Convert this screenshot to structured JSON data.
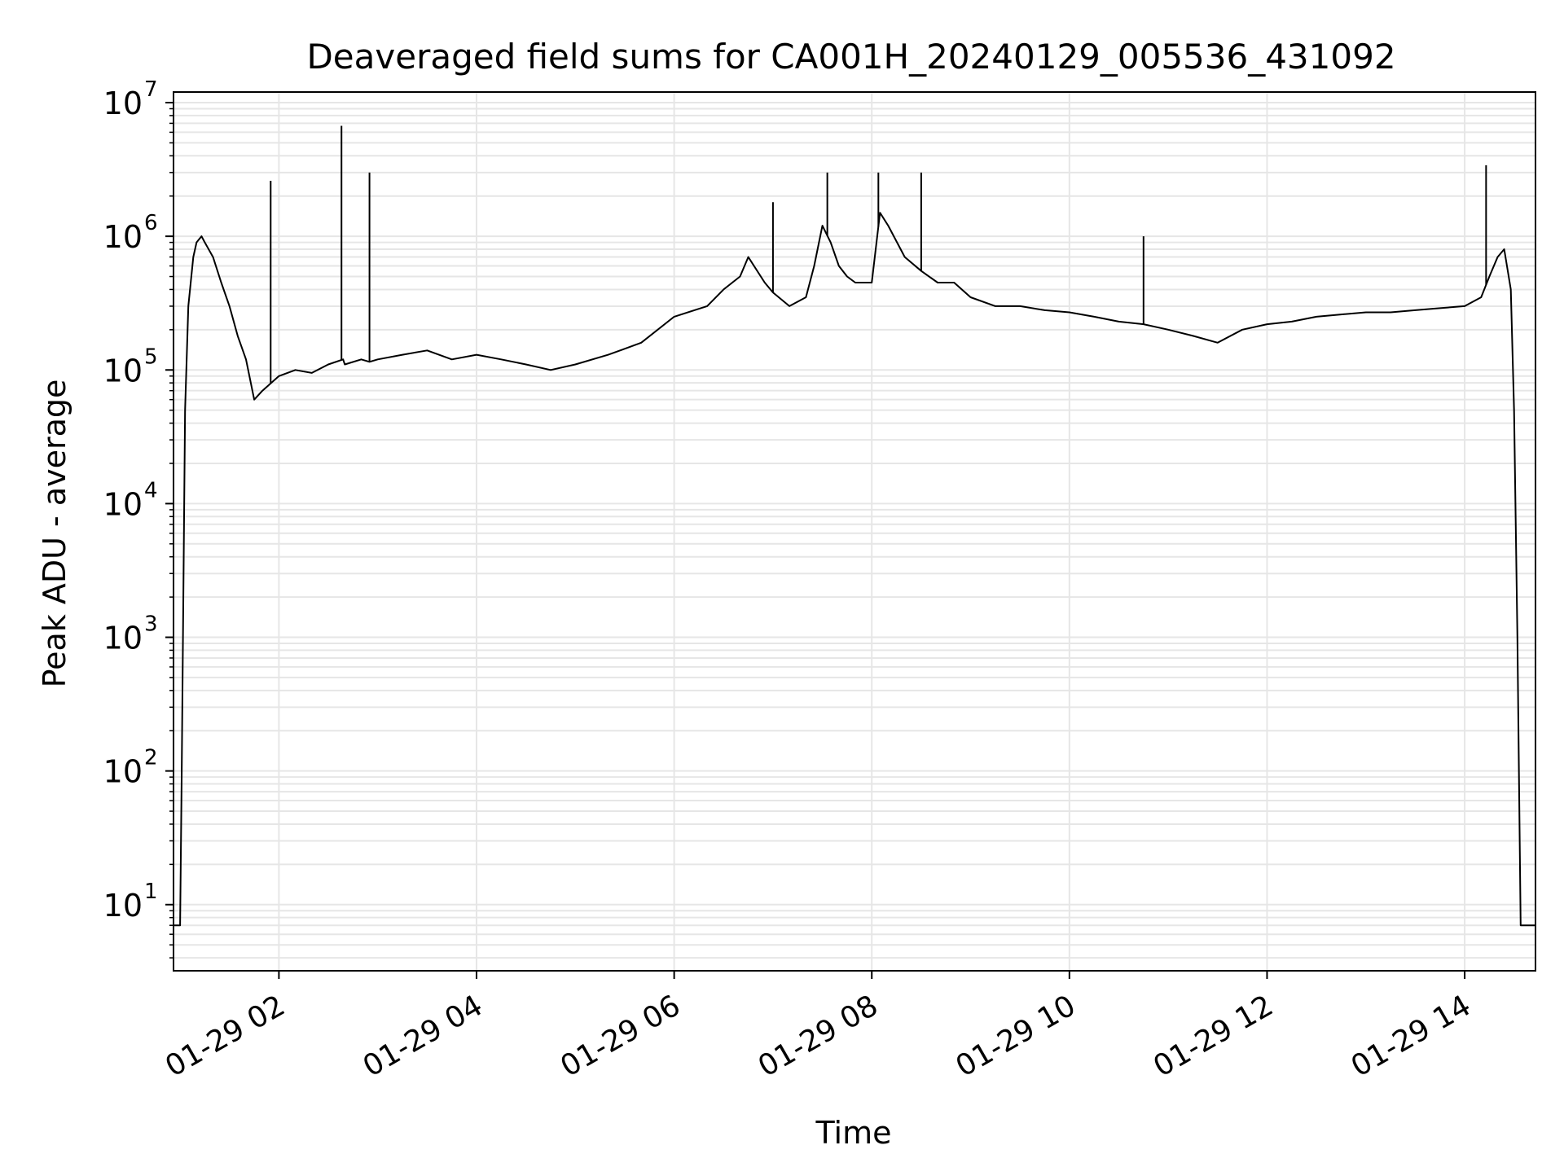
{
  "chart_data": {
    "type": "line",
    "title": "Deaveraged field sums for CA001H_20240129_005536_431092",
    "xlabel": "Time",
    "ylabel": "Peak ADU - average",
    "y_scale": "log",
    "grid": true,
    "xlim": [
      "2024-01-29 00:56",
      "2024-01-29 14:43"
    ],
    "ylim": [
      3.2,
      12000000
    ],
    "x_ticks": [
      {
        "label": "01-29 02",
        "value": "2024-01-29 02:00"
      },
      {
        "label": "01-29 04",
        "value": "2024-01-29 04:00"
      },
      {
        "label": "01-29 06",
        "value": "2024-01-29 06:00"
      },
      {
        "label": "01-29 08",
        "value": "2024-01-29 08:00"
      },
      {
        "label": "01-29 10",
        "value": "2024-01-29 10:00"
      },
      {
        "label": "01-29 12",
        "value": "2024-01-29 12:00"
      },
      {
        "label": "01-29 14",
        "value": "2024-01-29 14:00"
      }
    ],
    "y_ticks": [
      {
        "base": "10",
        "exp": "1",
        "value": 10
      },
      {
        "base": "10",
        "exp": "2",
        "value": 100
      },
      {
        "base": "10",
        "exp": "3",
        "value": 1000
      },
      {
        "base": "10",
        "exp": "4",
        "value": 10000
      },
      {
        "base": "10",
        "exp": "5",
        "value": 100000
      },
      {
        "base": "10",
        "exp": "6",
        "value": 1000000
      },
      {
        "base": "10",
        "exp": "7",
        "value": 10000000
      }
    ],
    "line_color": "#000000",
    "grid_color": "#e6e6e6",
    "series": [
      {
        "x": [
          "2024-01-29 00:56",
          "2024-01-29 01:00",
          "2024-01-29 01:01",
          "2024-01-29 01:03",
          "2024-01-29 01:05",
          "2024-01-29 01:08",
          "2024-01-29 01:10",
          "2024-01-29 01:13",
          "2024-01-29 01:15",
          "2024-01-29 01:20",
          "2024-01-29 01:25",
          "2024-01-29 01:30",
          "2024-01-29 01:35",
          "2024-01-29 01:40",
          "2024-01-29 01:45",
          "2024-01-29 01:50",
          "2024-01-29 02:00",
          "2024-01-29 02:10",
          "2024-01-29 02:20",
          "2024-01-29 02:30",
          "2024-01-29 02:39",
          "2024-01-29 02:40",
          "2024-01-29 02:50",
          "2024-01-29 02:55",
          "2024-01-29 03:00",
          "2024-01-29 03:15",
          "2024-01-29 03:30",
          "2024-01-29 03:45",
          "2024-01-29 04:00",
          "2024-01-29 04:15",
          "2024-01-29 04:30",
          "2024-01-29 04:45",
          "2024-01-29 05:00",
          "2024-01-29 05:20",
          "2024-01-29 05:40",
          "2024-01-29 06:00",
          "2024-01-29 06:20",
          "2024-01-29 06:30",
          "2024-01-29 06:40",
          "2024-01-29 06:45",
          "2024-01-29 06:55",
          "2024-01-29 07:00",
          "2024-01-29 07:10",
          "2024-01-29 07:20",
          "2024-01-29 07:25",
          "2024-01-29 07:30",
          "2024-01-29 07:35",
          "2024-01-29 07:40",
          "2024-01-29 07:45",
          "2024-01-29 07:50",
          "2024-01-29 08:00",
          "2024-01-29 08:05",
          "2024-01-29 08:10",
          "2024-01-29 08:20",
          "2024-01-29 08:30",
          "2024-01-29 08:40",
          "2024-01-29 08:50",
          "2024-01-29 09:00",
          "2024-01-29 09:15",
          "2024-01-29 09:30",
          "2024-01-29 09:45",
          "2024-01-29 10:00",
          "2024-01-29 10:15",
          "2024-01-29 10:30",
          "2024-01-29 10:45",
          "2024-01-29 11:00",
          "2024-01-29 11:15",
          "2024-01-29 11:30",
          "2024-01-29 11:45",
          "2024-01-29 12:00",
          "2024-01-29 12:15",
          "2024-01-29 12:30",
          "2024-01-29 12:45",
          "2024-01-29 13:00",
          "2024-01-29 13:15",
          "2024-01-29 13:30",
          "2024-01-29 13:45",
          "2024-01-29 14:00",
          "2024-01-29 14:10",
          "2024-01-29 14:15",
          "2024-01-29 14:20",
          "2024-01-29 14:24",
          "2024-01-29 14:28",
          "2024-01-29 14:30",
          "2024-01-29 14:32",
          "2024-01-29 14:34",
          "2024-01-29 14:36",
          "2024-01-29 14:43"
        ],
        "values": [
          7,
          7,
          100,
          50000,
          300000,
          700000,
          900000,
          1000000,
          900000,
          700000,
          450000,
          300000,
          180000,
          120000,
          60000,
          70000,
          90000,
          100000,
          95000,
          110000,
          120000,
          110000,
          120000,
          115000,
          120000,
          130000,
          140000,
          120000,
          130000,
          120000,
          110000,
          100000,
          110000,
          130000,
          160000,
          250000,
          300000,
          400000,
          500000,
          700000,
          450000,
          380000,
          300000,
          350000,
          600000,
          1200000,
          900000,
          600000,
          500000,
          450000,
          450000,
          1500000,
          1200000,
          700000,
          550000,
          450000,
          450000,
          350000,
          300000,
          300000,
          280000,
          270000,
          250000,
          230000,
          220000,
          200000,
          180000,
          160000,
          200000,
          220000,
          230000,
          250000,
          260000,
          270000,
          270000,
          280000,
          290000,
          300000,
          350000,
          500000,
          700000,
          800000,
          400000,
          50000,
          1000,
          7,
          7,
          7
        ],
        "spikes": [
          {
            "x": "2024-01-29 01:55",
            "y": 2600000
          },
          {
            "x": "2024-01-29 02:38",
            "y": 6700000
          },
          {
            "x": "2024-01-29 02:55",
            "y": 3000000
          },
          {
            "x": "2024-01-29 07:00",
            "y": 1800000
          },
          {
            "x": "2024-01-29 07:33",
            "y": 3000000
          },
          {
            "x": "2024-01-29 08:04",
            "y": 3000000
          },
          {
            "x": "2024-01-29 08:30",
            "y": 3000000
          },
          {
            "x": "2024-01-29 10:45",
            "y": 1000000
          },
          {
            "x": "2024-01-29 14:13",
            "y": 3400000
          }
        ]
      }
    ]
  }
}
